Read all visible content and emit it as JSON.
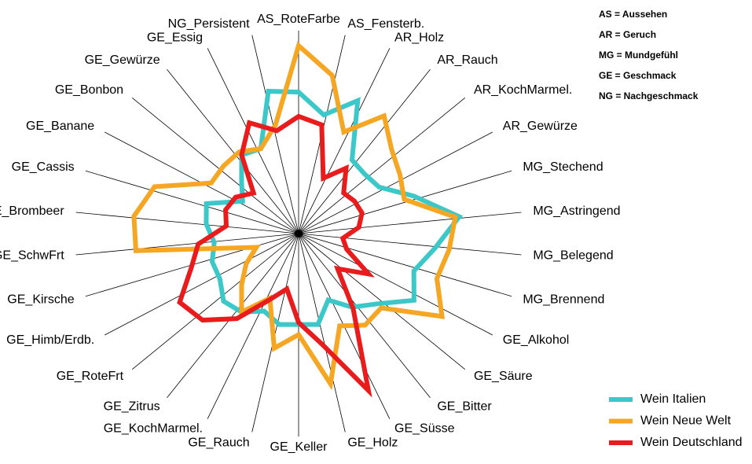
{
  "chart_data": {
    "type": "radar",
    "categories": [
      "AS_RoteFarbe",
      "AS_Fensterb.",
      "AR_Holz",
      "AR_Rauch",
      "AR_KochMarmel.",
      "AR_Gewürze",
      "MG_Stechend",
      "MG_Astringend",
      "MG_Belegend",
      "MG_Brennend",
      "GE_Alkohol",
      "GE_Säure",
      "GE_Bitter",
      "GE_Süsse",
      "GE_Holz",
      "GE_Keller",
      "GE_Rauch",
      "GE_KochMarmel.",
      "GE_Zitrus",
      "GE_RoteFrt",
      "GE_Himb/Erdb.",
      "GE_Kirsche",
      "GE_SchwFrt",
      "GE_Brombeer",
      "GE_Cassis",
      "GE_Banane",
      "GE_Bonbon",
      "GE_Gewürze",
      "GE_Essig",
      "NG_Persistent"
    ],
    "series": [
      {
        "name": "Wein Italien",
        "color": "#3cc8c8",
        "values": [
          7.0,
          6.0,
          7.2,
          4.5,
          4.4,
          4.6,
          6.0,
          8.0,
          6.8,
          6.0,
          6.6,
          5.2,
          4.5,
          3.6,
          4.6,
          4.5,
          4.6,
          4.2,
          4.8,
          5.0,
          4.5,
          4.5,
          4.2,
          4.6,
          4.8,
          3.2,
          3.8,
          4.8,
          4.6,
          7.2
        ]
      },
      {
        "name": "Wein Neue Welt",
        "color": "#f5a623",
        "values": [
          9.3,
          8.0,
          5.5,
          7.2,
          6.2,
          5.8,
          5.5,
          7.8,
          7.5,
          7.2,
          8.2,
          5.5,
          5.6,
          5.0,
          7.6,
          5.0,
          5.8,
          3.5,
          4.8,
          3.8,
          3.0,
          2.2,
          8.1,
          8.2,
          7.5,
          5.0,
          5.0,
          5.0,
          4.6,
          5.5
        ]
      },
      {
        "name": "Wein Deutschland",
        "color": "#e81c1c",
        "values": [
          5.8,
          5.5,
          3.0,
          4.0,
          3.0,
          3.2,
          3.3,
          3.0,
          2.2,
          2.5,
          4.0,
          2.6,
          4.6,
          8.5,
          5.6,
          4.4,
          2.8,
          3.6,
          5.2,
          6.4,
          6.8,
          5.6,
          5.0,
          3.6,
          3.8,
          3.6,
          3.0,
          4.8,
          6.0,
          5.2
        ]
      }
    ],
    "rlim": [
      0,
      10
    ],
    "key": [
      "AS = Aussehen",
      "AR = Geruch",
      "MG = Mundgefühl",
      "GE = Geschmack",
      "NG = Nachgeschmack"
    ]
  }
}
